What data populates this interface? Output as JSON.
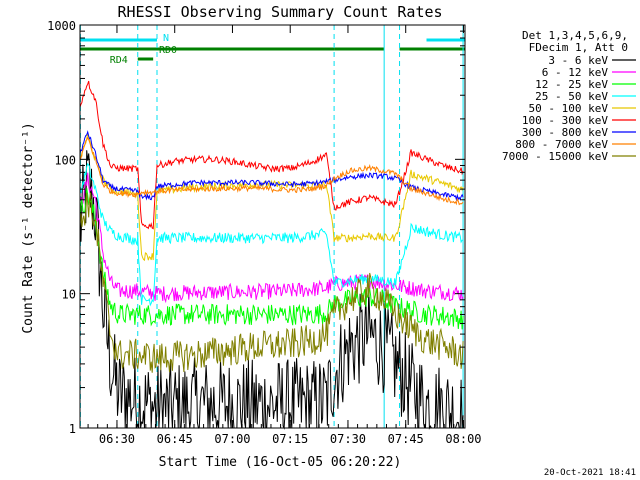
{
  "chart_data": {
    "type": "line",
    "title": "RHESSI Observing Summary Count Rates",
    "xlabel": "Start Time (16-Oct-05 06:20:22)",
    "ylabel": "Count Rate (s⁻¹ detector⁻¹)",
    "yscale": "log",
    "xlim_minutes_from_start": [
      0,
      100
    ],
    "ylim": [
      1,
      1000
    ],
    "x_ticks": [
      {
        "label": "06:30",
        "t": 9.6
      },
      {
        "label": "06:45",
        "t": 24.6
      },
      {
        "label": "07:00",
        "t": 39.6
      },
      {
        "label": "07:15",
        "t": 54.6
      },
      {
        "label": "07:30",
        "t": 69.6
      },
      {
        "label": "07:45",
        "t": 84.6
      },
      {
        "label": "08:00",
        "t": 99.6
      }
    ],
    "y_ticks": [
      {
        "label": "1",
        "v": 1
      },
      {
        "label": "10",
        "v": 10
      },
      {
        "label": "100",
        "v": 100
      },
      {
        "label": "1000",
        "v": 1000
      }
    ],
    "legend": {
      "position": "top-right",
      "header_lines": [
        "Det 1,3,4,5,6,9,",
        "FDecim 1, Att 0"
      ]
    },
    "flags": [
      {
        "label": "N",
        "color": "#00e0f0",
        "segments": [
          [
            0,
            20
          ],
          [
            90,
            100
          ]
        ]
      },
      {
        "label": "RD0",
        "color": "#008000",
        "segments": [
          [
            0,
            66
          ],
          [
            66,
            79
          ],
          [
            83,
            100
          ]
        ]
      },
      {
        "label": "RD4",
        "color": "#008000",
        "segments": [
          [
            15,
            19
          ]
        ]
      }
    ],
    "saa_lines": [
      0.1,
      15,
      20,
      66,
      83
    ],
    "night_lines": [
      79,
      99.5
    ],
    "series": [
      {
        "name": "3 - 6 keV",
        "color": "#000000",
        "x": [
          0,
          2,
          4,
          6,
          8,
          10,
          15,
          20,
          30,
          45,
          55,
          60,
          64,
          66,
          70,
          75,
          79,
          82,
          86,
          90,
          95,
          99
        ],
        "y": [
          30,
          70,
          40,
          8,
          3,
          1.8,
          1.6,
          1.4,
          1.5,
          1.5,
          1.5,
          1.5,
          1.6,
          2.5,
          4,
          5,
          4,
          3,
          2,
          1.5,
          1.4,
          1.2
        ]
      },
      {
        "name": "6 - 12 keV",
        "color": "#ff00ff",
        "x": [
          0,
          2,
          4,
          6,
          8,
          10,
          15,
          20,
          30,
          45,
          55,
          60,
          64,
          66,
          70,
          75,
          79,
          82,
          86,
          90,
          95,
          99
        ],
        "y": [
          45,
          70,
          50,
          20,
          12,
          10.5,
          10.5,
          10,
          10.2,
          10.3,
          10.5,
          10.8,
          11,
          11.8,
          12,
          12.5,
          12,
          11.5,
          11,
          10.5,
          10.3,
          10
        ]
      },
      {
        "name": "12 - 25 keV",
        "color": "#00ff00",
        "x": [
          0,
          2,
          4,
          6,
          8,
          10,
          15,
          20,
          30,
          45,
          55,
          60,
          64,
          66,
          70,
          75,
          79,
          82,
          86,
          90,
          95,
          99
        ],
        "y": [
          40,
          55,
          35,
          14,
          8,
          7,
          7,
          7,
          7,
          7,
          7,
          7,
          7.2,
          8.5,
          9,
          9.5,
          9,
          8,
          7.5,
          7,
          6.8,
          6.5
        ]
      },
      {
        "name": "25 - 50 keV",
        "color": "#00ffff",
        "x": [
          0,
          2,
          4,
          6,
          8,
          10,
          15,
          16,
          19,
          20,
          30,
          45,
          55,
          60,
          64,
          66,
          70,
          75,
          79,
          82,
          86,
          90,
          95,
          99
        ],
        "y": [
          55,
          90,
          60,
          35,
          29,
          27,
          25,
          9,
          9,
          26,
          26,
          26,
          26,
          27,
          28,
          12,
          12.5,
          13,
          12.5,
          12,
          31,
          29,
          27,
          26
        ]
      },
      {
        "name": "50 - 100 keV",
        "color": "#e8c800",
        "x": [
          0,
          2,
          4,
          6,
          8,
          10,
          15,
          16,
          19,
          20,
          30,
          45,
          55,
          60,
          64,
          66,
          70,
          75,
          79,
          82,
          86,
          90,
          95,
          99
        ],
        "y": [
          100,
          150,
          100,
          70,
          60,
          58,
          55,
          19,
          19,
          58,
          62,
          65,
          64,
          64,
          65,
          26,
          26,
          27,
          26,
          26,
          78,
          72,
          65,
          60
        ]
      },
      {
        "name": "100 - 300 keV",
        "color": "#ff0000",
        "x": [
          0,
          2,
          4,
          6,
          8,
          10,
          15,
          16,
          19,
          20,
          25,
          30,
          35,
          40,
          45,
          50,
          55,
          60,
          64,
          66,
          70,
          75,
          79,
          82,
          86,
          90,
          95,
          99
        ],
        "y": [
          250,
          380,
          280,
          130,
          88,
          86,
          85,
          32,
          32,
          90,
          97,
          100,
          100,
          96,
          90,
          85,
          86,
          95,
          108,
          44,
          48,
          52,
          48,
          46,
          112,
          100,
          88,
          82
        ]
      },
      {
        "name": "300 - 800 keV",
        "color": "#0000ff",
        "x": [
          0,
          2,
          4,
          6,
          8,
          10,
          15,
          16,
          19,
          20,
          30,
          45,
          55,
          60,
          64,
          66,
          70,
          75,
          79,
          82,
          86,
          90,
          95,
          99
        ],
        "y": [
          110,
          160,
          110,
          70,
          62,
          60,
          58,
          52,
          52,
          63,
          67,
          67,
          65,
          66,
          68,
          70,
          74,
          76,
          75,
          72,
          62,
          58,
          54,
          52
        ]
      },
      {
        "name": "800 - 7000 keV",
        "color": "#ff8000",
        "x": [
          0,
          2,
          4,
          6,
          8,
          10,
          15,
          16,
          19,
          20,
          30,
          45,
          55,
          60,
          64,
          66,
          70,
          75,
          79,
          82,
          86,
          90,
          95,
          99
        ],
        "y": [
          100,
          145,
          100,
          65,
          58,
          56,
          55,
          57,
          57,
          58,
          60,
          61,
          59,
          60,
          64,
          72,
          82,
          86,
          82,
          78,
          60,
          56,
          50,
          48
        ]
      },
      {
        "name": "7000 - 15000 keV",
        "color": "#808000",
        "x": [
          0,
          2,
          4,
          6,
          8,
          10,
          15,
          20,
          30,
          45,
          55,
          60,
          64,
          66,
          70,
          75,
          79,
          82,
          86,
          90,
          95,
          99
        ],
        "y": [
          30,
          50,
          35,
          12,
          5,
          3.5,
          3.5,
          3.3,
          3.5,
          4,
          4.2,
          4.5,
          5,
          7,
          9,
          11,
          9,
          7,
          5.5,
          4.5,
          4,
          3.5
        ]
      }
    ]
  },
  "footer": {
    "timestamp": "20-Oct-2021 18:41"
  }
}
